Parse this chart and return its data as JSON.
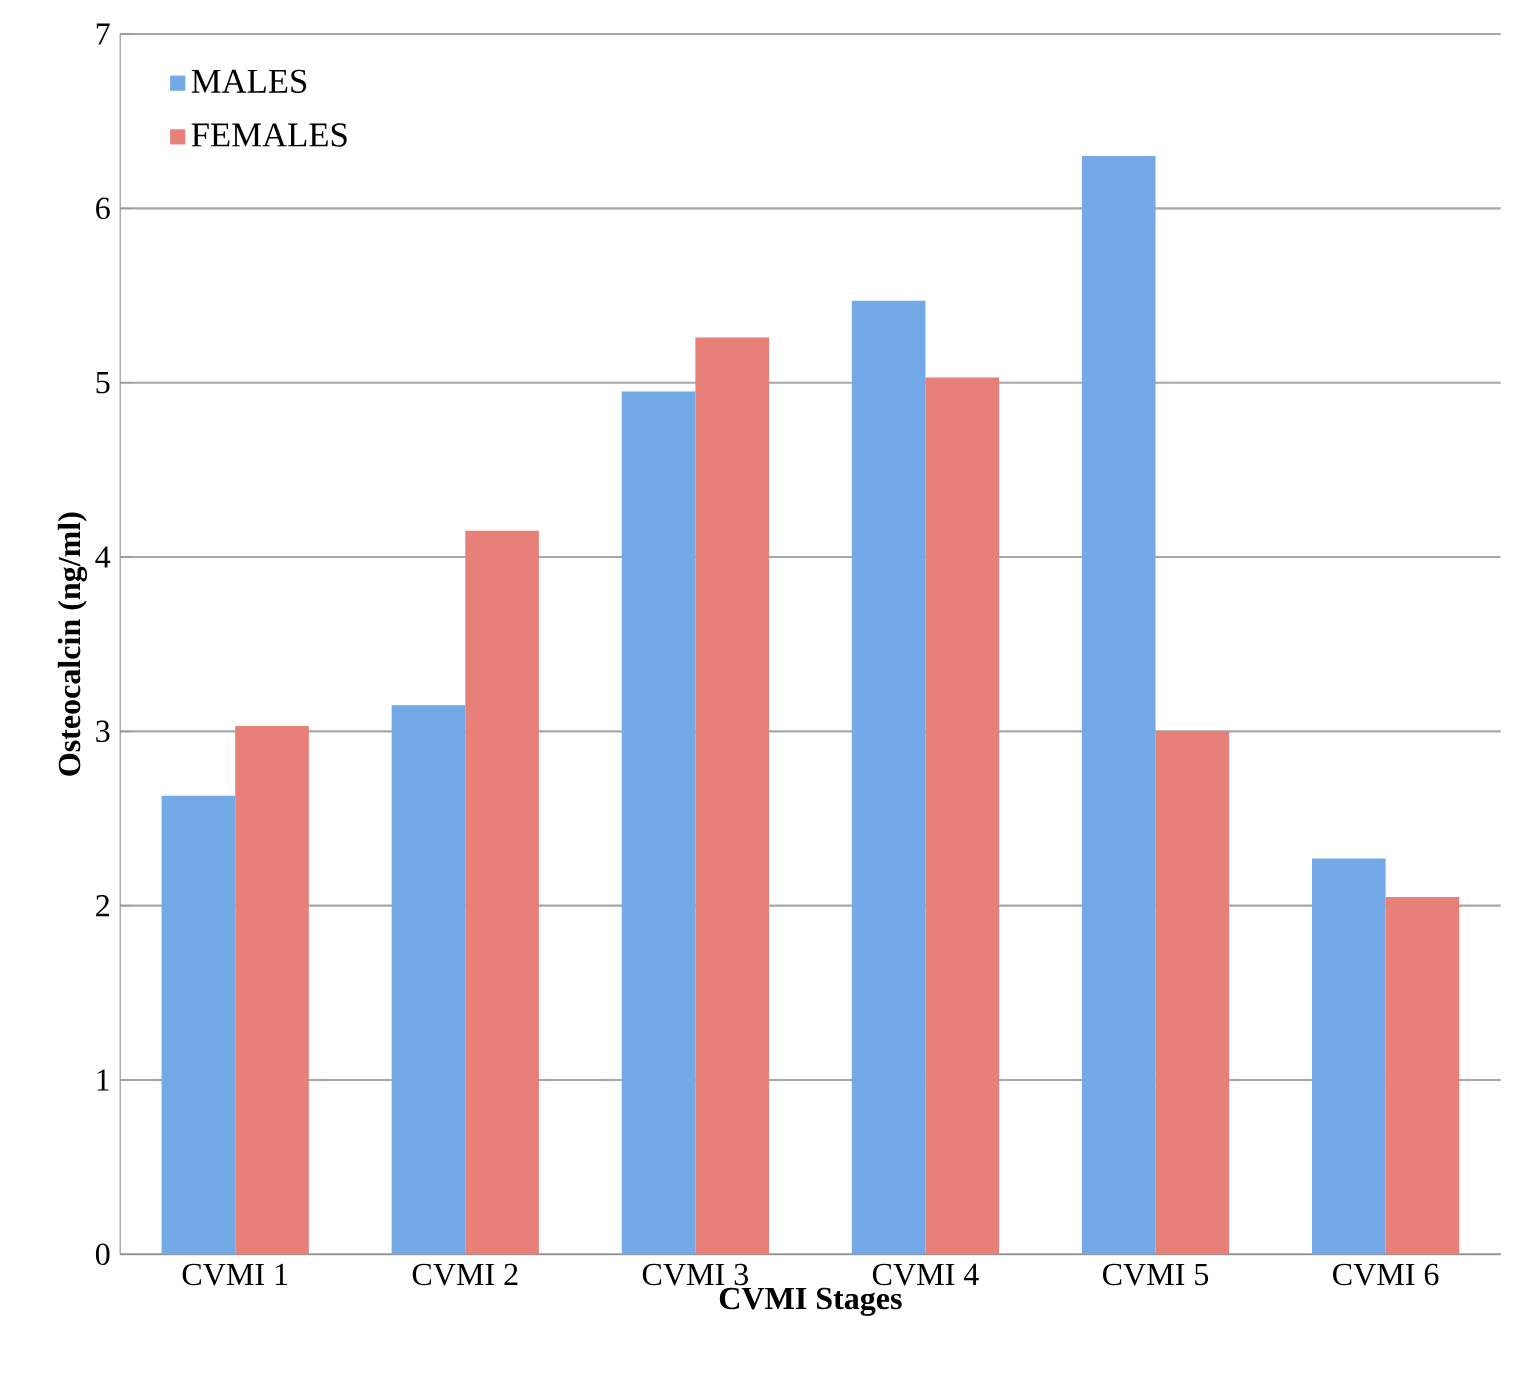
{
  "chart_data": {
    "type": "bar",
    "xlabel": "CVMI Stages",
    "ylabel": "Osteocalcin (ng/ml)",
    "categories": [
      "CVMI 1",
      "CVMI 2",
      "CVMI 3",
      "CVMI 4",
      "CVMI 5",
      "CVMI 6"
    ],
    "series": [
      {
        "name": "MALES",
        "color": "#72a9e6",
        "values": [
          2.63,
          3.15,
          4.95,
          5.47,
          6.3,
          2.27
        ]
      },
      {
        "name": "FEMALES",
        "color": "#e8807a",
        "values": [
          3.03,
          4.15,
          5.26,
          5.03,
          3.0,
          2.05
        ]
      }
    ],
    "ylim": [
      0,
      7
    ],
    "yticks": [
      0,
      1,
      2,
      3,
      4,
      5,
      6,
      7
    ],
    "grid": "y",
    "legend": "top left"
  }
}
